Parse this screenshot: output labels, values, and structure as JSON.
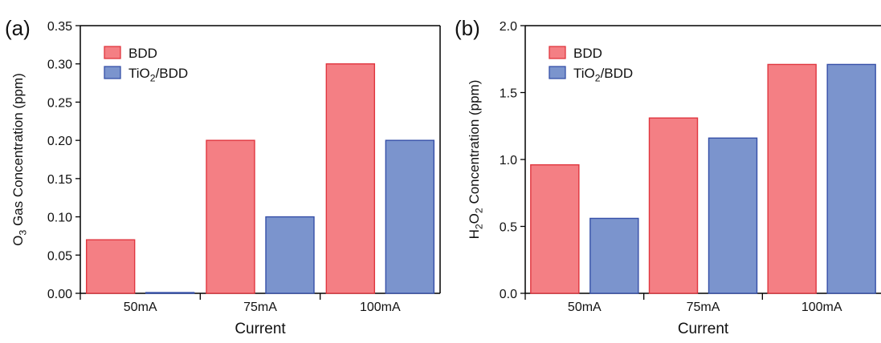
{
  "chart_data": [
    {
      "type": "bar",
      "panel_label": "(a)",
      "categories": [
        "50mA",
        "75mA",
        "100mA"
      ],
      "series": [
        {
          "name": "BDD",
          "values": [
            0.07,
            0.2,
            0.3
          ]
        },
        {
          "name": "TiO2/BDD",
          "values": [
            0.001,
            0.1,
            0.2
          ]
        }
      ],
      "xlabel": "Current",
      "ylabel": "O3 Gas Concentration (ppm)",
      "ylim": [
        0,
        0.35
      ],
      "yticks": [
        "0.00",
        "0.05",
        "0.10",
        "0.15",
        "0.20",
        "0.25",
        "0.30",
        "0.35"
      ],
      "legend_position": "top-left",
      "grid": false
    },
    {
      "type": "bar",
      "panel_label": "(b)",
      "categories": [
        "50mA",
        "75mA",
        "100mA"
      ],
      "series": [
        {
          "name": "BDD",
          "values": [
            0.96,
            1.31,
            1.71
          ]
        },
        {
          "name": "TiO2/BDD",
          "values": [
            0.56,
            1.16,
            1.71
          ]
        }
      ],
      "xlabel": "Current",
      "ylabel": "H2O2 Concentration (ppm)",
      "ylim": [
        0,
        2.0
      ],
      "yticks": [
        "0.0",
        "0.5",
        "1.0",
        "1.5",
        "2.0"
      ],
      "legend_position": "top-left",
      "grid": false
    }
  ],
  "colors": {
    "BDD_fill": "#f47f84",
    "BDD_stroke": "#e0363f",
    "TiO2_fill": "#7b94cd",
    "TiO2_stroke": "#3650a8"
  }
}
